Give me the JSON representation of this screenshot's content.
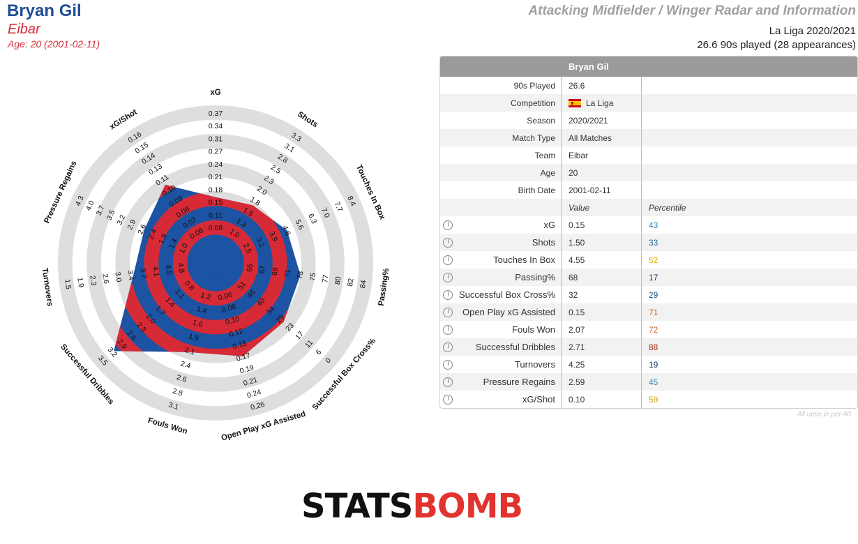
{
  "header": {
    "player": "Bryan Gil",
    "team": "Eibar",
    "age_line": "Age: 20 (2001-02-11)",
    "report_title": "Attacking Midfielder / Winger Radar and Information",
    "league_season": "La Liga 2020/2021",
    "played_line": "26.6 90s played (28 appearances)"
  },
  "chart_data": {
    "type": "radar",
    "colors": {
      "ring": "#dedede",
      "fill_blue": "#1c53a3",
      "fill_red": "#d62b36",
      "highlight_red": "#e1332f",
      "text": "#111111"
    },
    "axes": [
      {
        "name": "xG",
        "ticks": [
          "0.08",
          "0.11",
          "0.15",
          "0.18",
          "0.21",
          "0.24",
          "0.27",
          "0.31",
          "0.34",
          "0.37"
        ],
        "value": 0.15
      },
      {
        "name": "Shots",
        "ticks": [
          "1.0",
          "1.3",
          "1.5",
          "1.8",
          "2.0",
          "2.3",
          "2.5",
          "2.8",
          "3.1",
          "3.3"
        ],
        "value": 1.5
      },
      {
        "name": "Touches In Box",
        "ticks": [
          "2.5",
          "3.2",
          "3.9",
          "4.6",
          "5.6",
          "6.3",
          "7.0",
          "7.7",
          "8.4"
        ],
        "value": 4.55
      },
      {
        "name": "Passing%",
        "ticks": [
          "65",
          "67",
          "69",
          "71",
          "73",
          "75",
          "77",
          "80",
          "82",
          "84"
        ],
        "value": 68
      },
      {
        "name": "Successful Box Cross%",
        "ticks": [
          "51",
          "46",
          "40",
          "34",
          "29",
          "23",
          "17",
          "11",
          "6",
          "0"
        ],
        "value": 32
      },
      {
        "name": "Open Play xG Assisted",
        "ticks": [
          "0.06",
          "0.08",
          "0.10",
          "0.12",
          "0.15",
          "0.17",
          "0.19",
          "0.21",
          "0.24",
          "0.26"
        ],
        "value": 0.15
      },
      {
        "name": "Fouls Won",
        "ticks": [
          "1.2",
          "1.4",
          "1.6",
          "1.9",
          "2.1",
          "2.4",
          "2.6",
          "2.8",
          "3.1"
        ],
        "value": 2.07
      },
      {
        "name": "Successful Dribbles",
        "ticks": [
          "0.8",
          "1.1",
          "1.4",
          "1.7",
          "2.0",
          "2.3",
          "2.6",
          "2.9",
          "3.2",
          "3.5"
        ],
        "value": 2.71
      },
      {
        "name": "Turnovers",
        "ticks": [
          "4.8",
          "4.5",
          "4.1",
          "3.7",
          "3.4",
          "3.0",
          "2.6",
          "2.3",
          "1.9",
          "1.5"
        ],
        "value": 4.25
      },
      {
        "name": "Pressure Regains",
        "ticks": [
          "1.0",
          "1.4",
          "1.9",
          "2.4",
          "2.6",
          "2.9",
          "3.2",
          "3.5",
          "3.7",
          "4.0",
          "4.3"
        ],
        "value": 2.59
      },
      {
        "name": "xG/Shot",
        "ticks": [
          "0.06",
          "0.07",
          "0.08",
          "0.09",
          "0.10",
          "0.11",
          "0.13",
          "0.14",
          "0.15",
          "0.16"
        ],
        "value": 0.1
      }
    ],
    "polygon_levels": [
      0.36,
      0.38,
      0.45,
      0.5,
      0.53,
      0.58,
      0.55,
      0.84,
      0.48,
      0.45,
      0.55
    ]
  },
  "table": {
    "title": "Bryan Gil",
    "info": [
      {
        "label": "90s Played",
        "value": "26.6"
      },
      {
        "label": "Competition",
        "value": "La Liga",
        "flag": "spain-flag"
      },
      {
        "label": "Season",
        "value": "2020/2021"
      },
      {
        "label": "Match Type",
        "value": "All Matches"
      },
      {
        "label": "Team",
        "value": "Eibar"
      },
      {
        "label": "Age",
        "value": "20"
      },
      {
        "label": "Birth Date",
        "value": "2001-02-11"
      }
    ],
    "value_header": "Value",
    "percentile_header": "Percentile",
    "stats": [
      {
        "icon": "dial-icon",
        "label": "xG",
        "value": "0.15",
        "percentile": "43",
        "color": "#2a8fb8"
      },
      {
        "icon": "dial-icon",
        "label": "Shots",
        "value": "1.50",
        "percentile": "33",
        "color": "#1f6f98"
      },
      {
        "icon": "dial-icon",
        "label": "Touches In Box",
        "value": "4.55",
        "percentile": "52",
        "color": "#d9b400"
      },
      {
        "icon": "dial-icon",
        "label": "Passing%",
        "value": "68",
        "percentile": "17",
        "color": "#163b6b"
      },
      {
        "icon": "dial-icon",
        "label": "Successful Box Cross%",
        "value": "32",
        "percentile": "29",
        "color": "#1b5a86"
      },
      {
        "icon": "dial-icon",
        "label": "Open Play xG Assisted",
        "value": "0.15",
        "percentile": "71",
        "color": "#d0651a"
      },
      {
        "icon": "dial-icon",
        "label": "Fouls Won",
        "value": "2.07",
        "percentile": "72",
        "color": "#d0651a"
      },
      {
        "icon": "dial-icon",
        "label": "Successful Dribbles",
        "value": "2.71",
        "percentile": "88",
        "color": "#a1281d"
      },
      {
        "icon": "dial-icon",
        "label": "Turnovers",
        "value": "4.25",
        "percentile": "19",
        "color": "#163b6b"
      },
      {
        "icon": "dial-icon",
        "label": "Pressure Regains",
        "value": "2.59",
        "percentile": "45",
        "color": "#2a8fb8"
      },
      {
        "icon": "dial-icon",
        "label": "xG/Shot",
        "value": "0.10",
        "percentile": "59",
        "color": "#d9a000"
      }
    ]
  },
  "footnote": "All units in per-90",
  "logo": {
    "part1": "STATS",
    "part2": "BOMB"
  }
}
